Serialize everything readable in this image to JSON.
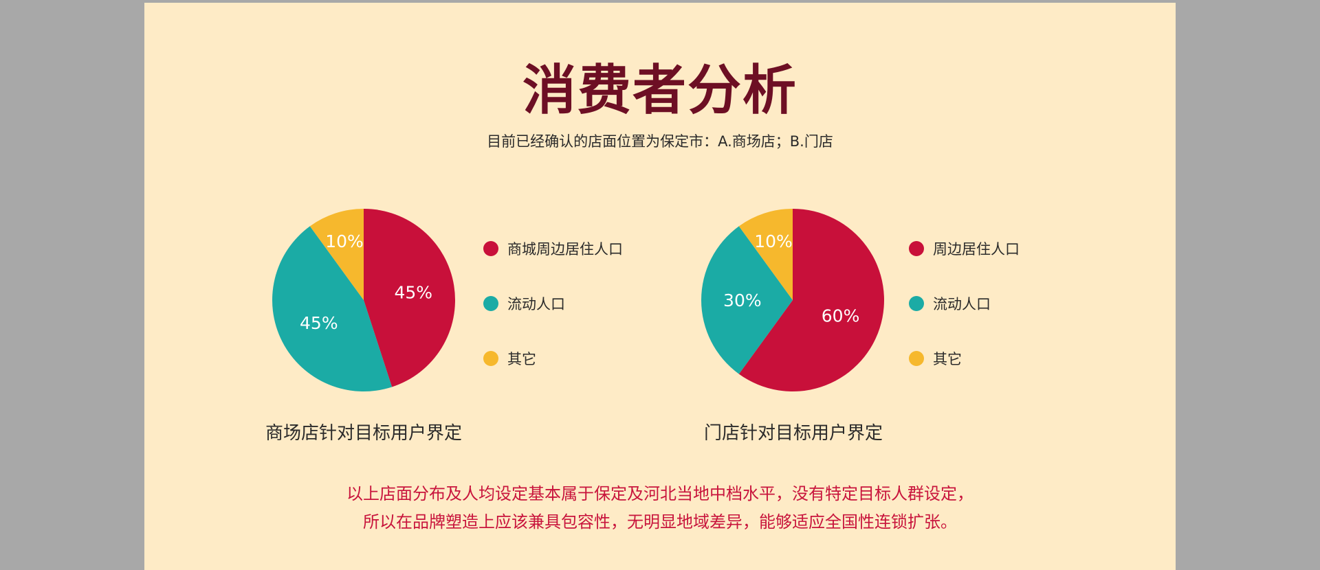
{
  "title": "消费者分析",
  "subtitle": "目前已经确认的店面位置为保定市：A.商场店；B.门店",
  "colors": {
    "red": "#c8103a",
    "teal": "#1babA5",
    "yellow": "#f6b82d",
    "title": "#6d0f24",
    "background": "#feebc6"
  },
  "chart_data": [
    {
      "type": "pie",
      "title": "商场店针对目标用户界定",
      "slices": [
        {
          "label": "商城周边居住人口",
          "value": 45,
          "value_label": "45%",
          "color": "#c8103a"
        },
        {
          "label": "流动人口",
          "value": 45,
          "value_label": "45%",
          "color": "#1babA5"
        },
        {
          "label": "其它",
          "value": 10,
          "value_label": "10%",
          "color": "#f6b82d"
        }
      ]
    },
    {
      "type": "pie",
      "title": "门店针对目标用户界定",
      "slices": [
        {
          "label": "周边居住人口",
          "value": 60,
          "value_label": "60%",
          "color": "#c8103a"
        },
        {
          "label": "流动人口",
          "value": 30,
          "value_label": "30%",
          "color": "#1babA5"
        },
        {
          "label": "其它",
          "value": 10,
          "value_label": "10%",
          "color": "#f6b82d"
        }
      ]
    }
  ],
  "conclusion": {
    "line1": "以上店面分布及人均设定基本属于保定及河北当地中档水平，没有特定目标人群设定，",
    "line2": "所以在品牌塑造上应该兼具包容性，无明显地域差异，能够适应全国性连锁扩张。"
  }
}
